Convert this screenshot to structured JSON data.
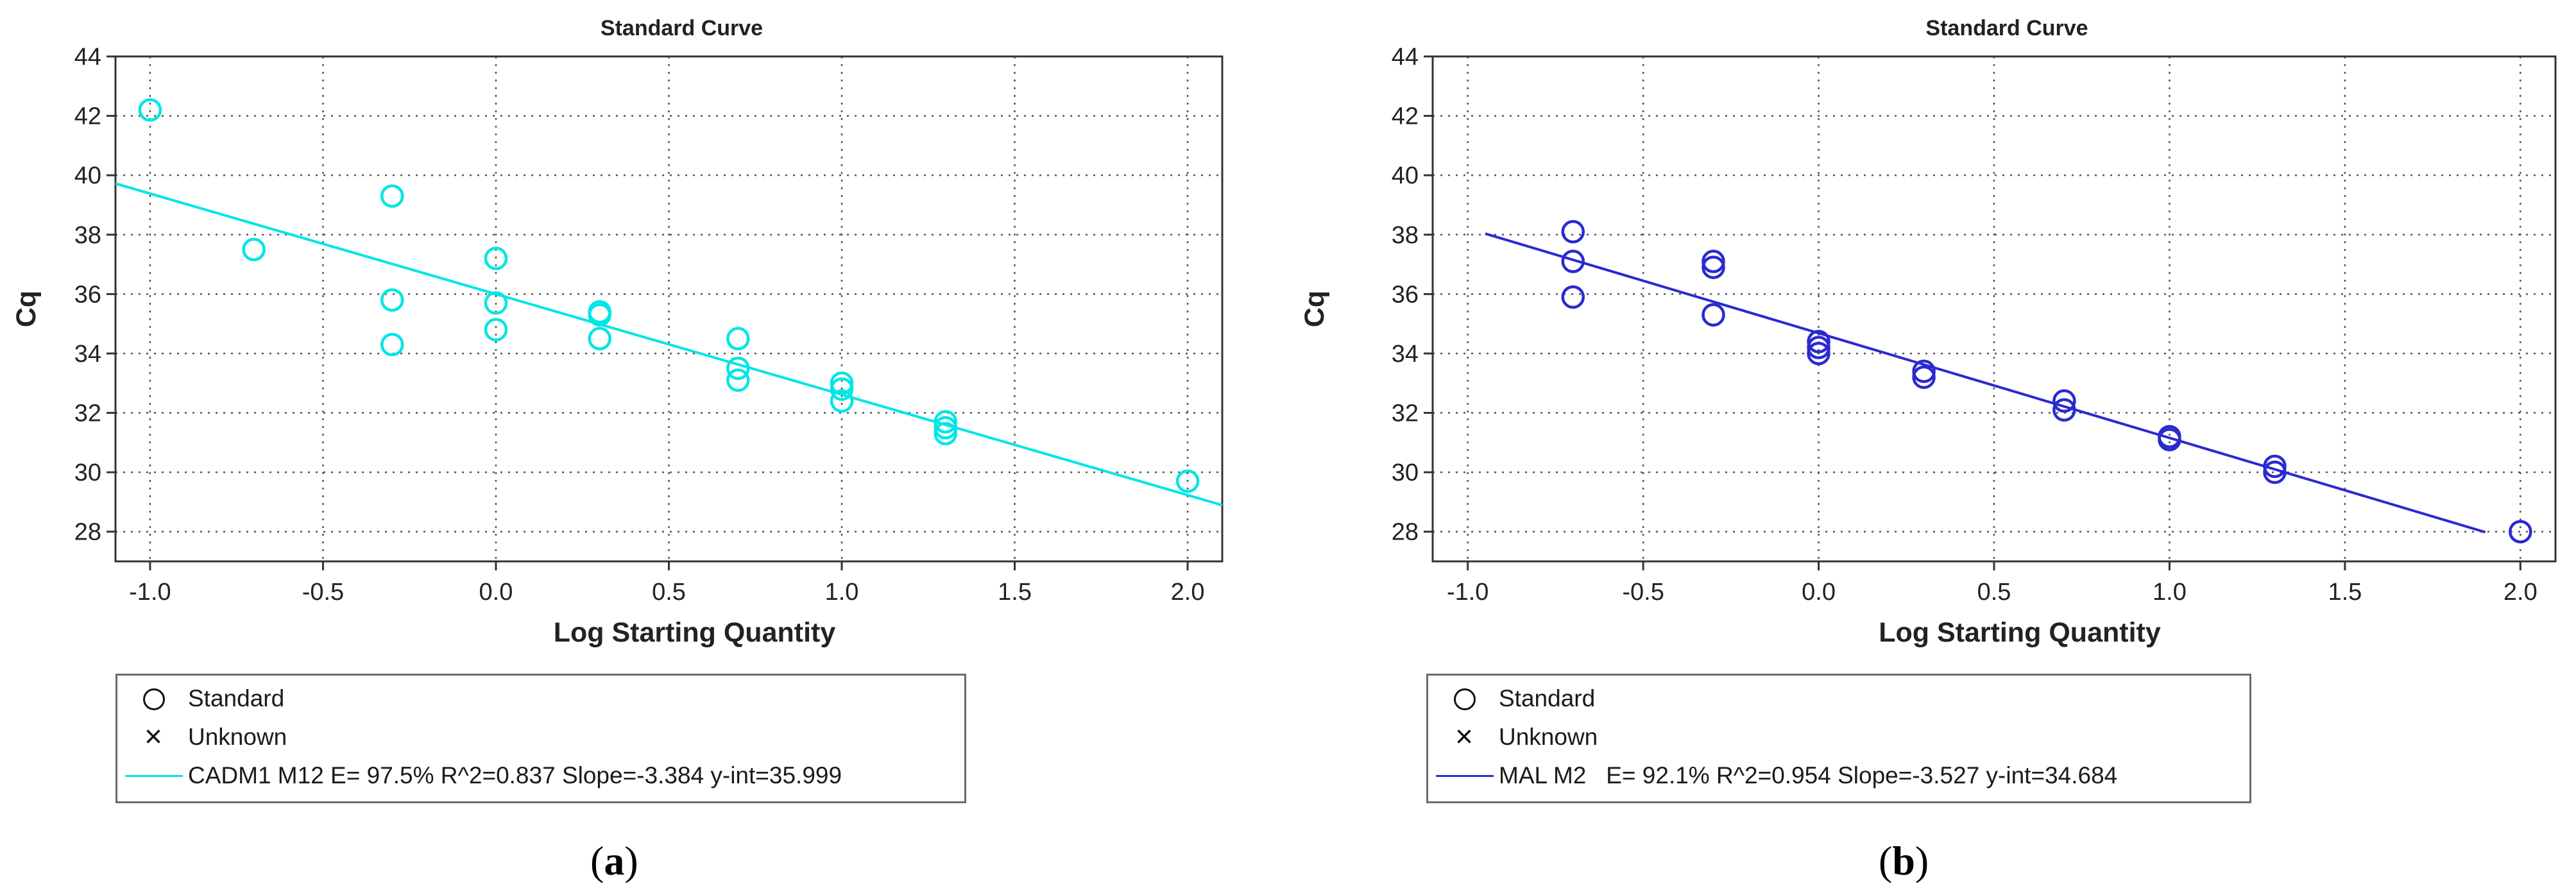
{
  "chart_data": [
    {
      "type": "scatter",
      "panel_label": "a",
      "title": "Standard Curve",
      "xlabel": "Log Starting Quantity",
      "ylabel": "Cq",
      "xlim": [
        -1.1,
        2.1
      ],
      "ylim": [
        27,
        44
      ],
      "xticks": [
        -1.0,
        -0.5,
        0.0,
        0.5,
        1.0,
        1.5,
        2.0
      ],
      "xtick_labels": [
        "-1.0",
        "-0.5",
        "0.0",
        "0.5",
        "1.0",
        "1.5",
        "2.0"
      ],
      "yticks": [
        28,
        30,
        32,
        34,
        36,
        38,
        40,
        42,
        44
      ],
      "ytick_labels": [
        "28",
        "30",
        "32",
        "34",
        "36",
        "38",
        "40",
        "42",
        "44"
      ],
      "grid": true,
      "color": "#00e5e5",
      "series": [
        {
          "name": "Standard",
          "points": [
            [
              -1.0,
              42.2
            ],
            [
              -0.7,
              37.5
            ],
            [
              -0.3,
              39.3
            ],
            [
              -0.3,
              35.8
            ],
            [
              -0.3,
              34.3
            ],
            [
              0.0,
              37.2
            ],
            [
              0.0,
              35.7
            ],
            [
              0.0,
              34.8
            ],
            [
              0.3,
              35.4
            ],
            [
              0.3,
              35.3
            ],
            [
              0.3,
              34.5
            ],
            [
              0.7,
              34.5
            ],
            [
              0.7,
              33.5
            ],
            [
              0.7,
              33.1
            ],
            [
              1.0,
              33.0
            ],
            [
              1.0,
              32.8
            ],
            [
              1.0,
              32.4
            ],
            [
              1.3,
              31.7
            ],
            [
              1.3,
              31.5
            ],
            [
              1.3,
              31.3
            ],
            [
              2.0,
              29.7
            ]
          ]
        }
      ],
      "fit": {
        "slope": -3.384,
        "intercept": 35.999,
        "x_range": [
          -1.1,
          2.1
        ]
      },
      "legend": {
        "entries": [
          "Standard",
          "Unknown",
          "CADM1 M12 E= 97.5% R^2=0.837 Slope=-3.384 y-int=35.999"
        ],
        "placement": "bottom-left"
      }
    },
    {
      "type": "scatter",
      "panel_label": "b",
      "title": "Standard Curve",
      "xlabel": "Log Starting Quantity",
      "ylabel": "Cq",
      "xlim": [
        -1.1,
        2.1
      ],
      "ylim": [
        27,
        44
      ],
      "xticks": [
        -1.0,
        -0.5,
        0.0,
        0.5,
        1.0,
        1.5,
        2.0
      ],
      "xtick_labels": [
        "-1.0",
        "-0.5",
        "0.0",
        "0.5",
        "1.0",
        "1.5",
        "2.0"
      ],
      "yticks": [
        28,
        30,
        32,
        34,
        36,
        38,
        40,
        42,
        44
      ],
      "ytick_labels": [
        "28",
        "30",
        "32",
        "34",
        "36",
        "38",
        "40",
        "42",
        "44"
      ],
      "grid": true,
      "color": "#2a2ad0",
      "series": [
        {
          "name": "Standard",
          "points": [
            [
              -0.7,
              38.1
            ],
            [
              -0.7,
              37.1
            ],
            [
              -0.7,
              35.9
            ],
            [
              -0.3,
              37.1
            ],
            [
              -0.3,
              36.9
            ],
            [
              -0.3,
              35.3
            ],
            [
              0.0,
              34.4
            ],
            [
              0.0,
              34.2
            ],
            [
              0.0,
              34.0
            ],
            [
              0.3,
              33.4
            ],
            [
              0.3,
              33.2
            ],
            [
              0.7,
              32.4
            ],
            [
              0.7,
              32.1
            ],
            [
              1.0,
              31.2
            ],
            [
              1.0,
              31.1
            ],
            [
              1.3,
              30.2
            ],
            [
              1.3,
              30.0
            ],
            [
              2.0,
              28.0
            ]
          ]
        }
      ],
      "fit": {
        "slope": -3.527,
        "intercept": 34.684,
        "x_range": [
          -0.95,
          1.9
        ]
      },
      "legend": {
        "entries": [
          "Standard",
          "Unknown",
          "MAL M2   E= 92.1% R^2=0.954 Slope=-3.527 y-int=34.684"
        ],
        "placement": "bottom-left"
      }
    }
  ]
}
